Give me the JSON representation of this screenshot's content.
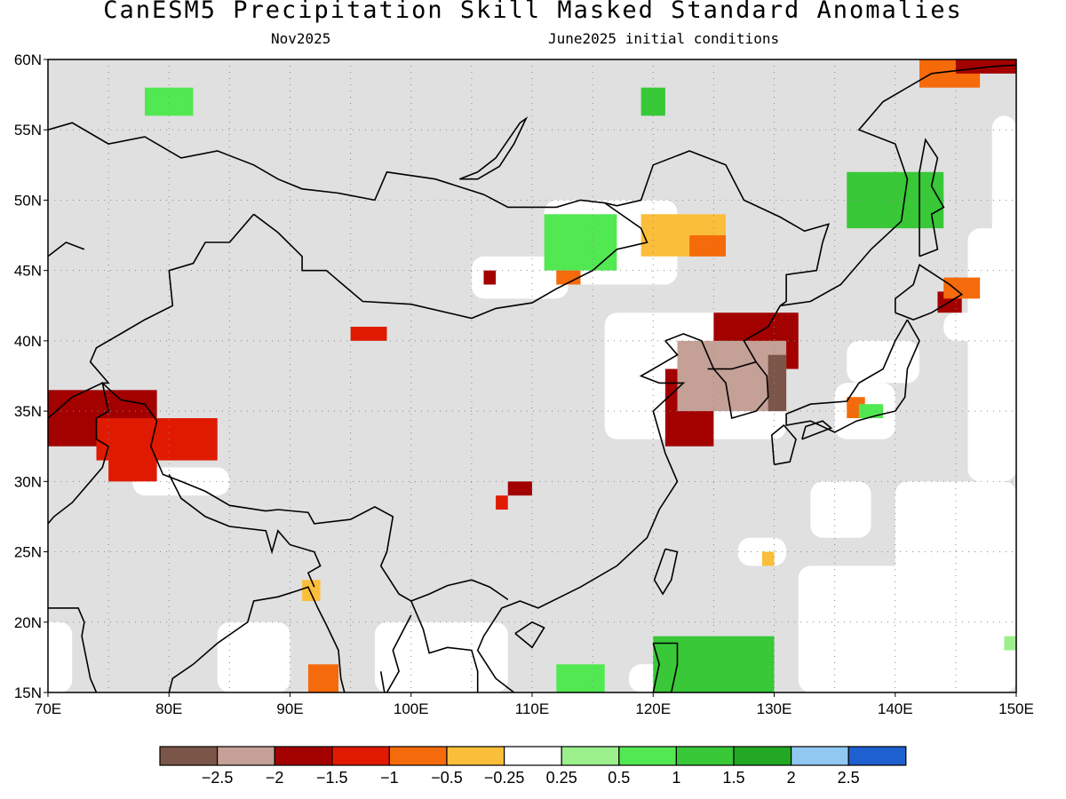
{
  "title": "CanESM5 Precipitation Skill Masked Standard Anomalies",
  "subtitle_left": "Nov2025",
  "subtitle_right": "June2025 initial conditions",
  "map": {
    "lon_range": [
      70,
      150
    ],
    "lat_range": [
      15,
      60
    ],
    "x_ticks": [
      "70E",
      "80E",
      "90E",
      "100E",
      "110E",
      "120E",
      "130E",
      "140E",
      "150E"
    ],
    "y_ticks": [
      "15N",
      "20N",
      "25N",
      "30N",
      "35N",
      "40N",
      "45N",
      "50N",
      "55N",
      "60N"
    ],
    "grid": "dotted",
    "masked_color": "#e0e0e0"
  },
  "colorbar": {
    "colors": [
      "#7a5548",
      "#c4a097",
      "#a30000",
      "#e01a00",
      "#f56a0a",
      "#fbbe3a",
      "#ffffff",
      "#9cf08c",
      "#52e852",
      "#38c838",
      "#22a822",
      "#90c8f2",
      "#1f60d0"
    ],
    "labels": [
      "−2.5",
      "−2",
      "−1.5",
      "−1",
      "−0.5",
      "−0.25",
      "0.25",
      "0.5",
      "1",
      "1.5",
      "2",
      "2.5"
    ]
  },
  "anomaly_regions": [
    {
      "name": "tibet-west",
      "color": "#a30000",
      "lon": [
        70,
        79
      ],
      "lat": [
        32.5,
        36.5
      ]
    },
    {
      "name": "tibet-west-red",
      "color": "#e01a00",
      "lon": [
        74,
        84
      ],
      "lat": [
        31.5,
        34.5
      ]
    },
    {
      "name": "north-india",
      "color": "#e01a00",
      "lon": [
        75,
        79
      ],
      "lat": [
        30,
        32
      ]
    },
    {
      "name": "korea-north",
      "color": "#a30000",
      "lon": [
        125,
        132
      ],
      "lat": [
        38,
        42
      ]
    },
    {
      "name": "korea-west",
      "color": "#a30000",
      "lon": [
        121,
        125
      ],
      "lat": [
        32.5,
        38
      ]
    },
    {
      "name": "korea-core",
      "color": "#c4a097",
      "lon": [
        122,
        131
      ],
      "lat": [
        35,
        40
      ]
    },
    {
      "name": "korea-east",
      "color": "#7a5548",
      "lon": [
        129.5,
        131
      ],
      "lat": [
        35,
        39
      ]
    },
    {
      "name": "north-pacific-ne",
      "color": "#f56a0a",
      "lon": [
        142,
        147
      ],
      "lat": [
        58,
        60
      ]
    },
    {
      "name": "north-pacific-ne-red",
      "color": "#a30000",
      "lon": [
        145,
        150
      ],
      "lat": [
        59,
        60
      ]
    },
    {
      "name": "sakhalin",
      "color": "#38c838",
      "lon": [
        136,
        144
      ],
      "lat": [
        48,
        52
      ]
    },
    {
      "name": "hokkaido-east",
      "color": "#a30000",
      "lon": [
        143.5,
        145.5
      ],
      "lat": [
        42,
        43.5
      ]
    },
    {
      "name": "hokkaido-east-orange",
      "color": "#f56a0a",
      "lon": [
        144,
        147
      ],
      "lat": [
        43,
        44.5
      ]
    },
    {
      "name": "mongolia-green",
      "color": "#52e852",
      "lon": [
        111,
        117
      ],
      "lat": [
        45,
        49
      ]
    },
    {
      "name": "mongolia-orange",
      "color": "#fbbe3a",
      "lon": [
        119,
        126
      ],
      "lat": [
        46,
        49
      ]
    },
    {
      "name": "mongolia-orange-dark",
      "color": "#f56a0a",
      "lon": [
        123,
        126
      ],
      "lat": [
        46,
        47.5
      ]
    },
    {
      "name": "kazakh-green",
      "color": "#52e852",
      "lon": [
        78,
        82
      ],
      "lat": [
        56,
        58
      ]
    },
    {
      "name": "siberia-green",
      "color": "#38c838",
      "lon": [
        119,
        121
      ],
      "lat": [
        56,
        58
      ]
    },
    {
      "name": "tarim-red",
      "color": "#e01a00",
      "lon": [
        95,
        98
      ],
      "lat": [
        40,
        41
      ]
    },
    {
      "name": "gansu-red",
      "color": "#a30000",
      "lon": [
        106,
        107
      ],
      "lat": [
        44,
        45
      ]
    },
    {
      "name": "mongolia-south-orange",
      "color": "#f56a0a",
      "lon": [
        112,
        114
      ],
      "lat": [
        44,
        45
      ]
    },
    {
      "name": "sichuan-red",
      "color": "#a30000",
      "lon": [
        108,
        110
      ],
      "lat": [
        29,
        30
      ]
    },
    {
      "name": "sichuan-red-2",
      "color": "#e01a00",
      "lon": [
        107,
        108
      ],
      "lat": [
        28,
        29
      ]
    },
    {
      "name": "myanmar-orange",
      "color": "#f56a0a",
      "lon": [
        91.5,
        94
      ],
      "lat": [
        15,
        17
      ]
    },
    {
      "name": "bangla-orange",
      "color": "#fbbe3a",
      "lon": [
        91,
        92.5
      ],
      "lat": [
        21.5,
        23
      ]
    },
    {
      "name": "philippines-green",
      "color": "#38c838",
      "lon": [
        120,
        130
      ],
      "lat": [
        15,
        19
      ]
    },
    {
      "name": "scs-green",
      "color": "#52e852",
      "lon": [
        112,
        116
      ],
      "lat": [
        15,
        17
      ]
    },
    {
      "name": "japan-orange",
      "color": "#f56a0a",
      "lon": [
        136,
        137.5
      ],
      "lat": [
        34.5,
        36
      ]
    },
    {
      "name": "japan-green",
      "color": "#52e852",
      "lon": [
        137,
        139
      ],
      "lat": [
        34.5,
        35.5
      ]
    },
    {
      "name": "pacific-orange",
      "color": "#fbbe3a",
      "lon": [
        129,
        130
      ],
      "lat": [
        24,
        25
      ]
    },
    {
      "name": "pacific-east-green",
      "color": "#9cf08c",
      "lon": [
        149,
        150
      ],
      "lat": [
        18,
        19
      ]
    }
  ]
}
